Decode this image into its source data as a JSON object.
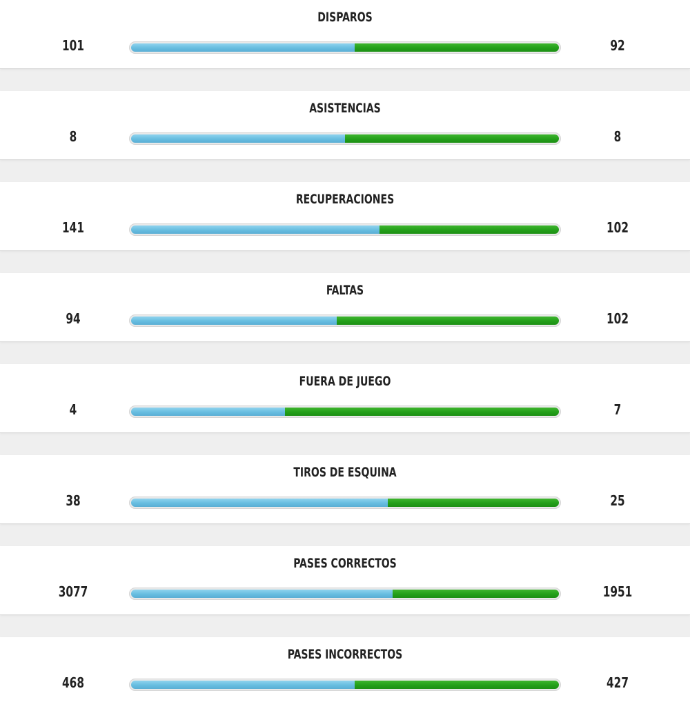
{
  "colors": {
    "home_bar": "#67bde0",
    "away_bar": "#239f1a",
    "row_background": "#ffffff",
    "page_background": "#efefef",
    "text": "#222222"
  },
  "stats": [
    {
      "label": "DISPAROS",
      "home": "101",
      "away": "92",
      "home_share": 0.523
    },
    {
      "label": "ASISTENCIAS",
      "home": "8",
      "away": "8",
      "home_share": 0.5
    },
    {
      "label": "RECUPERACIONES",
      "home": "141",
      "away": "102",
      "home_share": 0.58
    },
    {
      "label": "FALTAS",
      "home": "94",
      "away": "102",
      "home_share": 0.48
    },
    {
      "label": "FUERA DE JUEGO",
      "home": "4",
      "away": "7",
      "home_share": 0.36
    },
    {
      "label": "TIROS DE ESQUINA",
      "home": "38",
      "away": "25",
      "home_share": 0.6
    },
    {
      "label": "PASES CORRECTOS",
      "home": "3077",
      "away": "1951",
      "home_share": 0.612
    },
    {
      "label": "PASES INCORRECTOS",
      "home": "468",
      "away": "427",
      "home_share": 0.523
    }
  ]
}
